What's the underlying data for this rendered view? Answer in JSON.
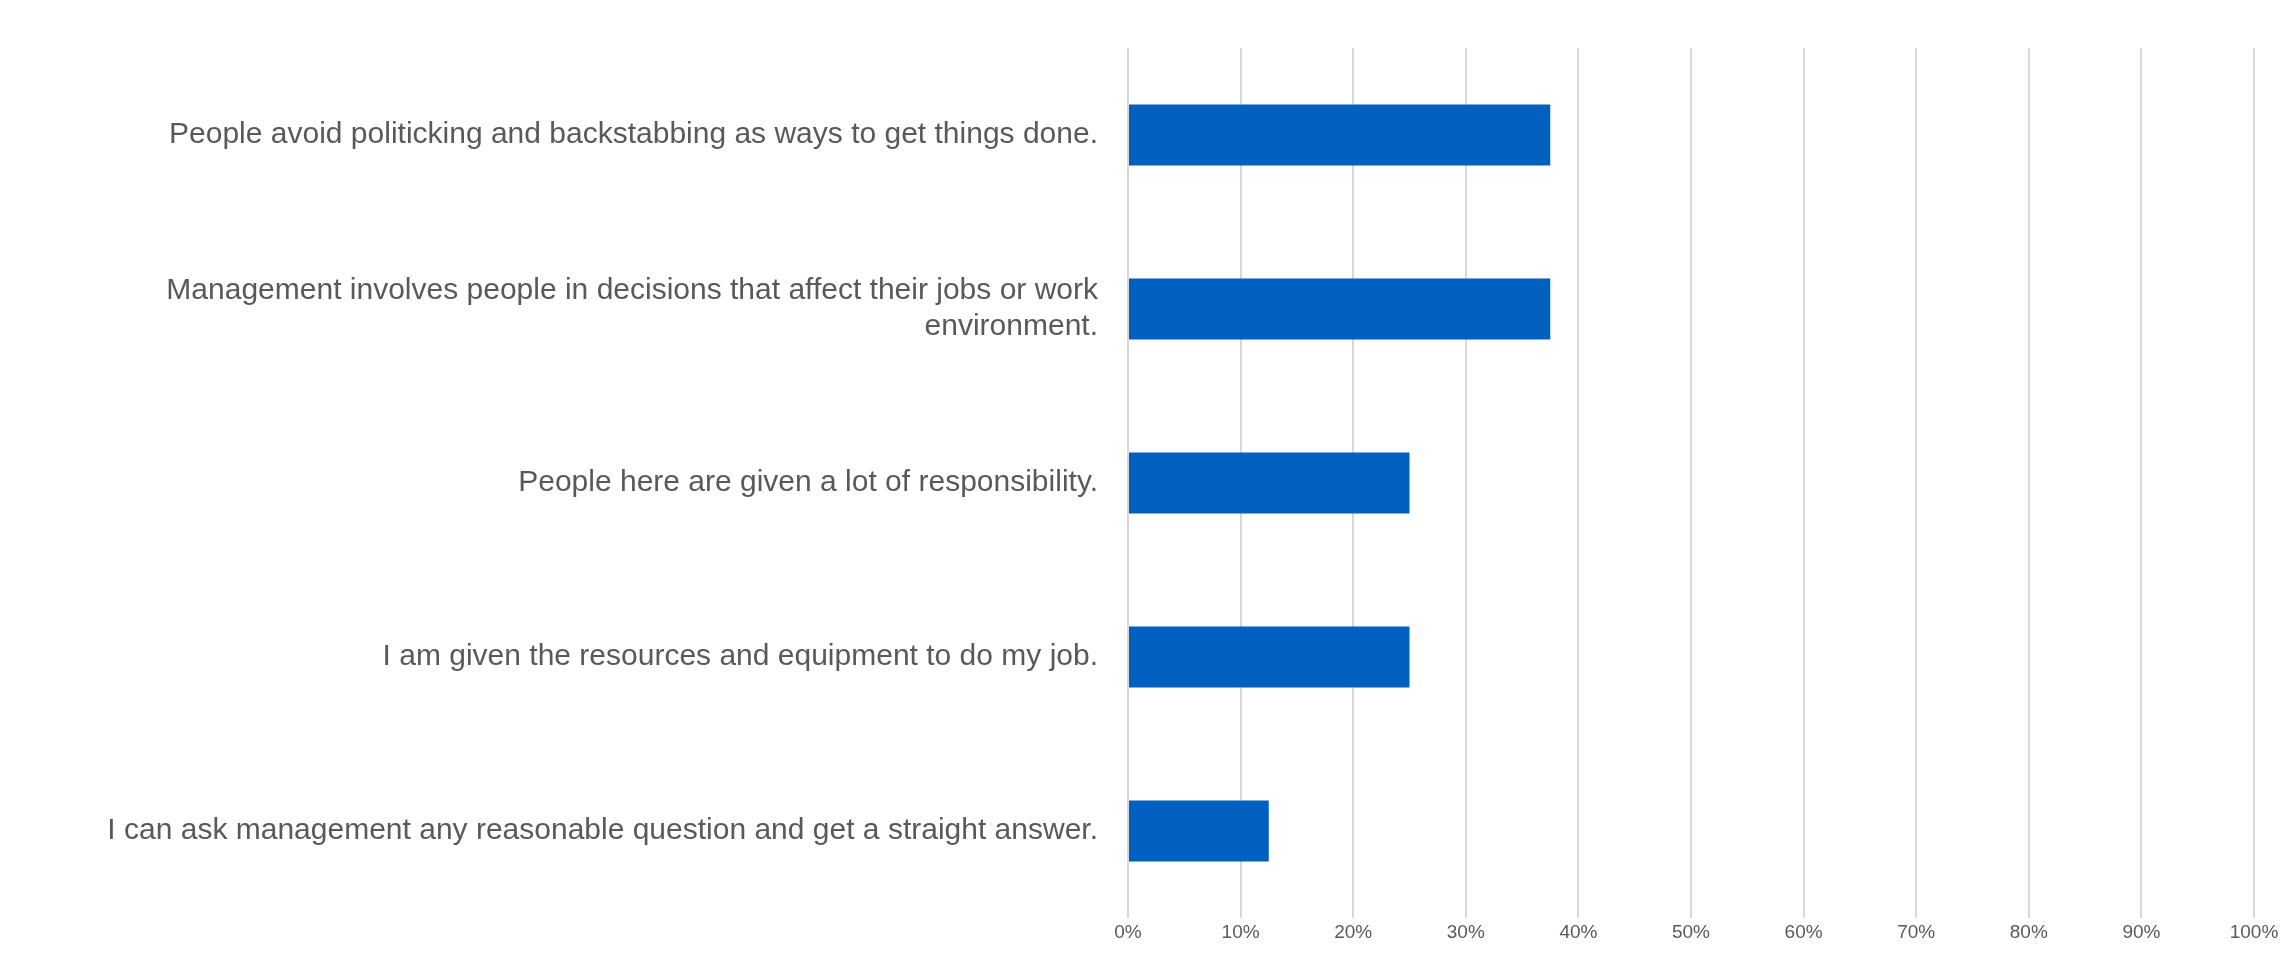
{
  "chart_data": {
    "type": "bar",
    "orientation": "horizontal",
    "categories": [
      "People avoid politicking and backstabbing as ways to get things done.",
      "Management involves people in decisions that affect their jobs or work environment.",
      "People here are given a lot of responsibility.",
      "I am given the resources and equipment to do my job.",
      "I can ask management any reasonable question and get a straight answer."
    ],
    "values": [
      37.5,
      37.5,
      25,
      25,
      12.5
    ],
    "color": "#0060c0",
    "xlim": [
      0,
      100
    ],
    "xticks": [
      {
        "value": 0,
        "label": "0%"
      },
      {
        "value": 10,
        "label": "10%"
      },
      {
        "value": 20,
        "label": "20%"
      },
      {
        "value": 30,
        "label": "30%"
      },
      {
        "value": 40,
        "label": "40%"
      },
      {
        "value": 50,
        "label": "50%"
      },
      {
        "value": 60,
        "label": "60%"
      },
      {
        "value": 70,
        "label": "70%"
      },
      {
        "value": 80,
        "label": "80%"
      },
      {
        "value": 90,
        "label": "90%"
      },
      {
        "value": 100,
        "label": "100%"
      }
    ],
    "grid": "x",
    "legend": false
  }
}
